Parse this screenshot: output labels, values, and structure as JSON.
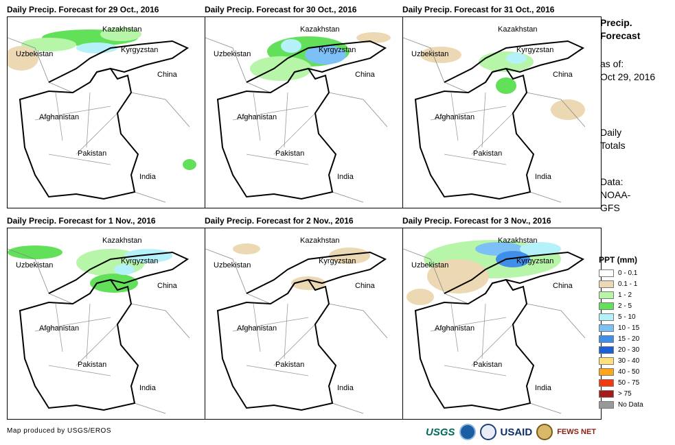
{
  "panels": [
    {
      "title": "Daily Precip. Forecast for 29 Oct., 2016"
    },
    {
      "title": "Daily Precip. Forecast for 30 Oct., 2016"
    },
    {
      "title": "Daily Precip. Forecast for 31 Oct., 2016"
    },
    {
      "title": "Daily Precip. Forecast for 1 Nov., 2016"
    },
    {
      "title": "Daily Precip. Forecast for 2 Nov., 2016"
    },
    {
      "title": "Daily Precip. Forecast for 3 Nov., 2016"
    }
  ],
  "map_labels": {
    "kazakhstan": "Kazakhstan",
    "uzbekistan": "Uzbekistan",
    "kyrgyzstan": "Kyrgyzstan",
    "china": "China",
    "afghanistan": "Afghanistan",
    "pakistan": "Pakistan",
    "india": "India"
  },
  "side": {
    "heading_line1": "Precip.",
    "heading_line2": "Forecast",
    "asof_line1": "as of:",
    "asof_line2": "Oct 29, 2016",
    "totals_line1": "Daily",
    "totals_line2": "Totals",
    "data_line1": "Data:",
    "data_line2": "NOAA-",
    "data_line3": "GFS"
  },
  "legend": {
    "title": "PPT (mm)",
    "items": [
      {
        "label": "0 - 0.1",
        "color": "#ffffff"
      },
      {
        "label": "0.1 - 1",
        "color": "#ecd9b4"
      },
      {
        "label": "1 - 2",
        "color": "#b7f5a8"
      },
      {
        "label": "2 - 5",
        "color": "#63e05a"
      },
      {
        "label": "5 - 10",
        "color": "#b5f1f8"
      },
      {
        "label": "10 - 15",
        "color": "#7dc0f5"
      },
      {
        "label": "15 - 20",
        "color": "#3f8ee8"
      },
      {
        "label": "20 - 30",
        "color": "#1a5fd6"
      },
      {
        "label": "30 - 40",
        "color": "#ffe07a"
      },
      {
        "label": "40 - 50",
        "color": "#ffa51a"
      },
      {
        "label": "50 - 75",
        "color": "#f23a0e"
      },
      {
        "label": "> 75",
        "color": "#a61c1c"
      },
      {
        "label": "No Data",
        "color": "#999999"
      }
    ]
  },
  "footer": {
    "credit": "Map produced by USGS/EROS",
    "logos": [
      "USGS",
      "NOAA",
      "USAID",
      "FEWS NET"
    ]
  }
}
